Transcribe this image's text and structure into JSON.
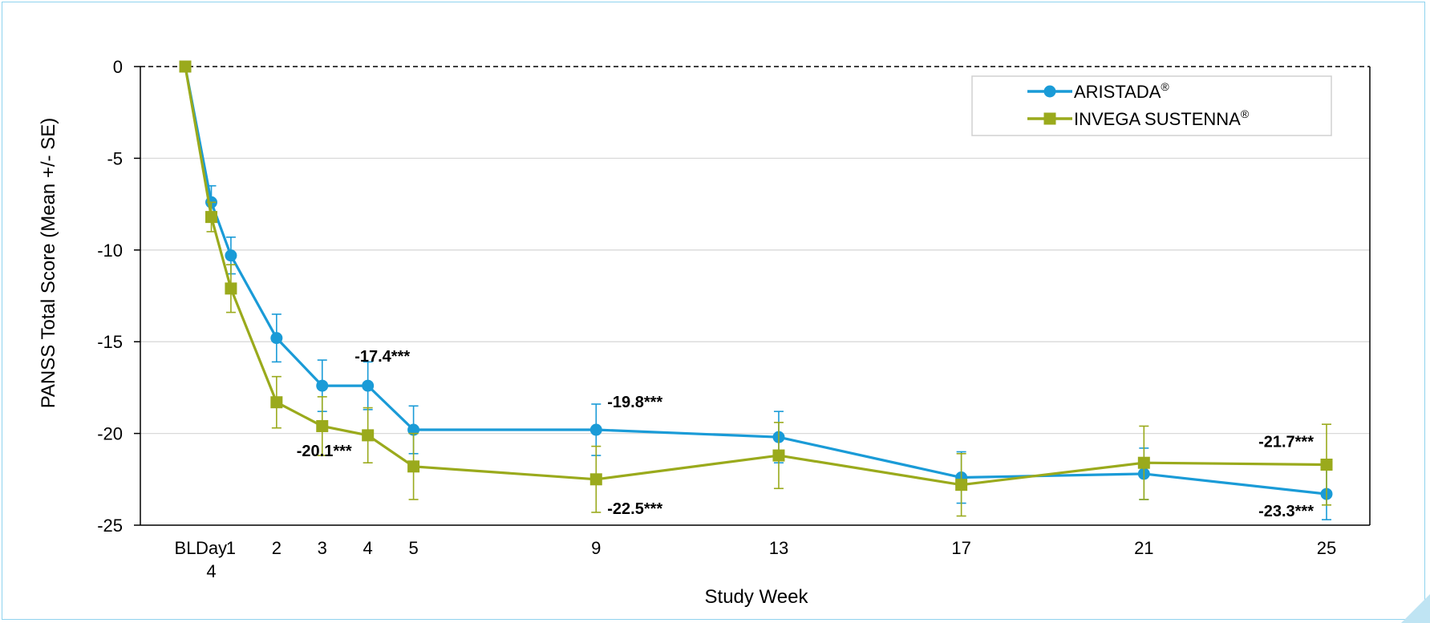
{
  "colors": {
    "aristada": "#1a9bd7",
    "invega": "#9aaa1c",
    "frame": "#8fd3ee",
    "grid": "#d9d9d9"
  },
  "chart_data": {
    "type": "line",
    "title": "",
    "xlabel": "Study Week",
    "ylabel": "PANSS Total Score (Mean +/- SE)",
    "ylim": [
      -25,
      0
    ],
    "yticks": [
      0,
      -5,
      -10,
      -15,
      -20,
      -25
    ],
    "xtick_labels": [
      {
        "label": "BL",
        "x": 0
      },
      {
        "label": "Day",
        "sub": "4",
        "x": 0.571
      },
      {
        "label": "1",
        "x": 1
      },
      {
        "label": "2",
        "x": 2
      },
      {
        "label": "3",
        "x": 3
      },
      {
        "label": "4",
        "x": 4
      },
      {
        "label": "5",
        "x": 5
      },
      {
        "label": "9",
        "x": 9
      },
      {
        "label": "13",
        "x": 13
      },
      {
        "label": "17",
        "x": 17
      },
      {
        "label": "21",
        "x": 21
      },
      {
        "label": "25",
        "x": 25
      }
    ],
    "grid": true,
    "legend_position": "top-right",
    "series": [
      {
        "name": "ARISTADA",
        "superscript": "®",
        "marker": "circle",
        "color": "#1a9bd7",
        "x": [
          0,
          0.571,
          1,
          2,
          3,
          4,
          5,
          9,
          13,
          17,
          21,
          25
        ],
        "y": [
          0,
          -7.4,
          -10.3,
          -14.8,
          -17.4,
          -17.4,
          -19.8,
          -19.8,
          -20.2,
          -22.4,
          -22.2,
          -23.3
        ],
        "se": [
          0,
          0.9,
          1.0,
          1.3,
          1.4,
          1.3,
          1.3,
          1.4,
          1.4,
          1.4,
          1.4,
          1.4
        ]
      },
      {
        "name": "INVEGA SUSTENNA",
        "superscript": "®",
        "marker": "square",
        "color": "#9aaa1c",
        "x": [
          0,
          0.571,
          1,
          2,
          3,
          4,
          5,
          9,
          13,
          17,
          21,
          25
        ],
        "y": [
          0,
          -8.2,
          -12.1,
          -18.3,
          -19.6,
          -20.1,
          -21.8,
          -22.5,
          -21.2,
          -22.8,
          -21.6,
          -21.7
        ],
        "se": [
          0,
          0.8,
          1.3,
          1.4,
          1.6,
          1.5,
          1.8,
          1.8,
          1.8,
          1.7,
          2.0,
          2.2
        ]
      }
    ],
    "annotations": [
      {
        "text": "-17.4***",
        "x": 4,
        "y": -17.4,
        "position": "above"
      },
      {
        "text": "-20.1***",
        "x": 4,
        "y": -20.1,
        "position": "below-left"
      },
      {
        "text": "-19.8***",
        "x": 9,
        "y": -19.8,
        "position": "above-right"
      },
      {
        "text": "-22.5***",
        "x": 9,
        "y": -22.5,
        "position": "below-right"
      },
      {
        "text": "-21.7***",
        "x": 25,
        "y": -21.7,
        "position": "above-left"
      },
      {
        "text": "-23.3***",
        "x": 25,
        "y": -23.3,
        "position": "below-left"
      }
    ]
  }
}
